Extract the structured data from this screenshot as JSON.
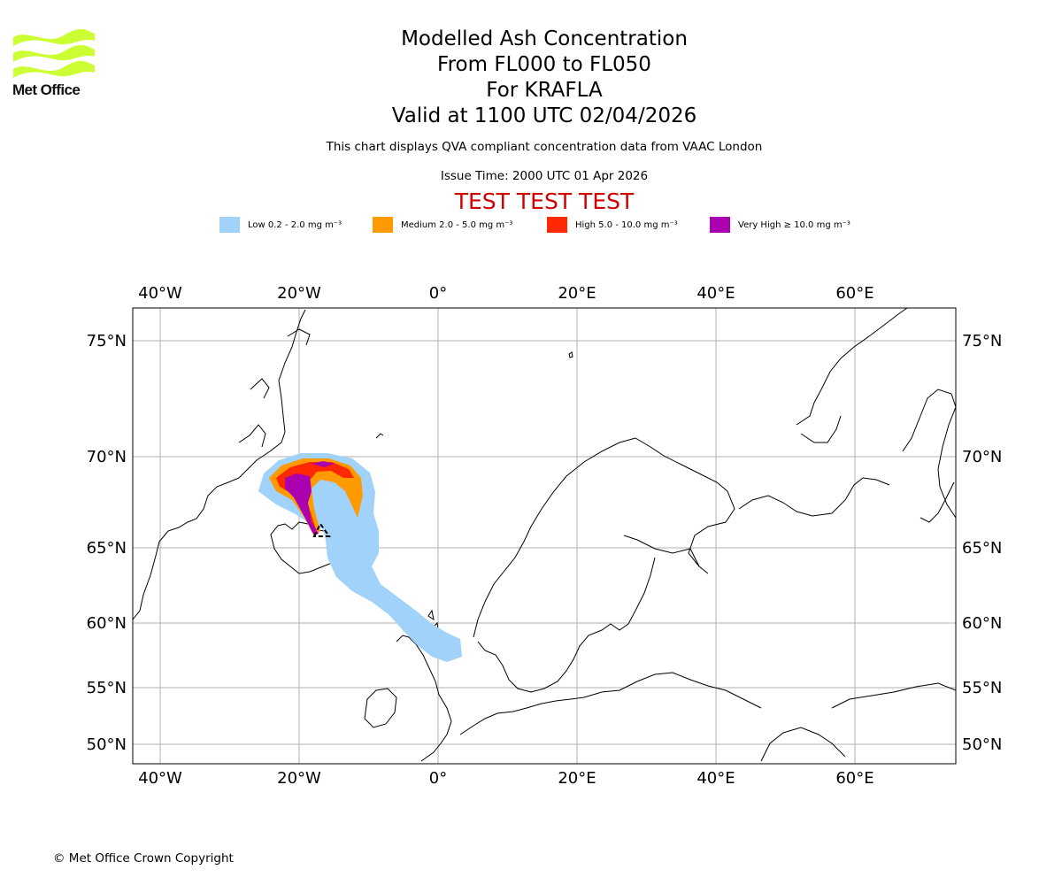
{
  "branding": {
    "logo_text": "Met Office",
    "logo_color": "#ccff33",
    "logo_icon": "met-office-waves-icon"
  },
  "header": {
    "title": "Modelled Ash Concentration",
    "levels": "From FL000 to FL050",
    "volcano": "For KRAFLA",
    "valid": "Valid at 1100 UTC 02/04/2026",
    "description": "This chart displays QVA compliant concentration data from VAAC London",
    "issue_time": "Issue Time: 2000 UTC 01 Apr 2026",
    "test_banner": "TEST TEST TEST",
    "test_color": "#d00000"
  },
  "legend": [
    {
      "label": "Low 0.2 - 2.0 mg m⁻³",
      "color": "#a0d2fa"
    },
    {
      "label": "Medium 2.0 - 5.0 mg m⁻³",
      "color": "#ff9a00"
    },
    {
      "label": "High 5.0 - 10.0 mg m⁻³",
      "color": "#ff2800"
    },
    {
      "label": "Very High ≥ 10.0 mg m⁻³",
      "color": "#aa00b0"
    }
  ],
  "map": {
    "longitude_labels": [
      "40°W",
      "20°W",
      "0°",
      "20°E",
      "40°E",
      "60°E"
    ],
    "latitude_labels": [
      "75°N",
      "70°N",
      "65°N",
      "60°N",
      "55°N",
      "50°N"
    ],
    "longitude_values": [
      -40,
      -20,
      0,
      20,
      40,
      60
    ],
    "latitude_values": [
      75,
      70,
      65,
      60,
      55,
      50
    ],
    "lon_range": [
      -44,
      74
    ],
    "lat_range": [
      49,
      76.5
    ],
    "gridlines": true,
    "grid_color": "#b0b0b0",
    "source_marker": "volcano-triangle-icon"
  },
  "footer": {
    "copyright": "© Met Office Crown Copyright"
  }
}
